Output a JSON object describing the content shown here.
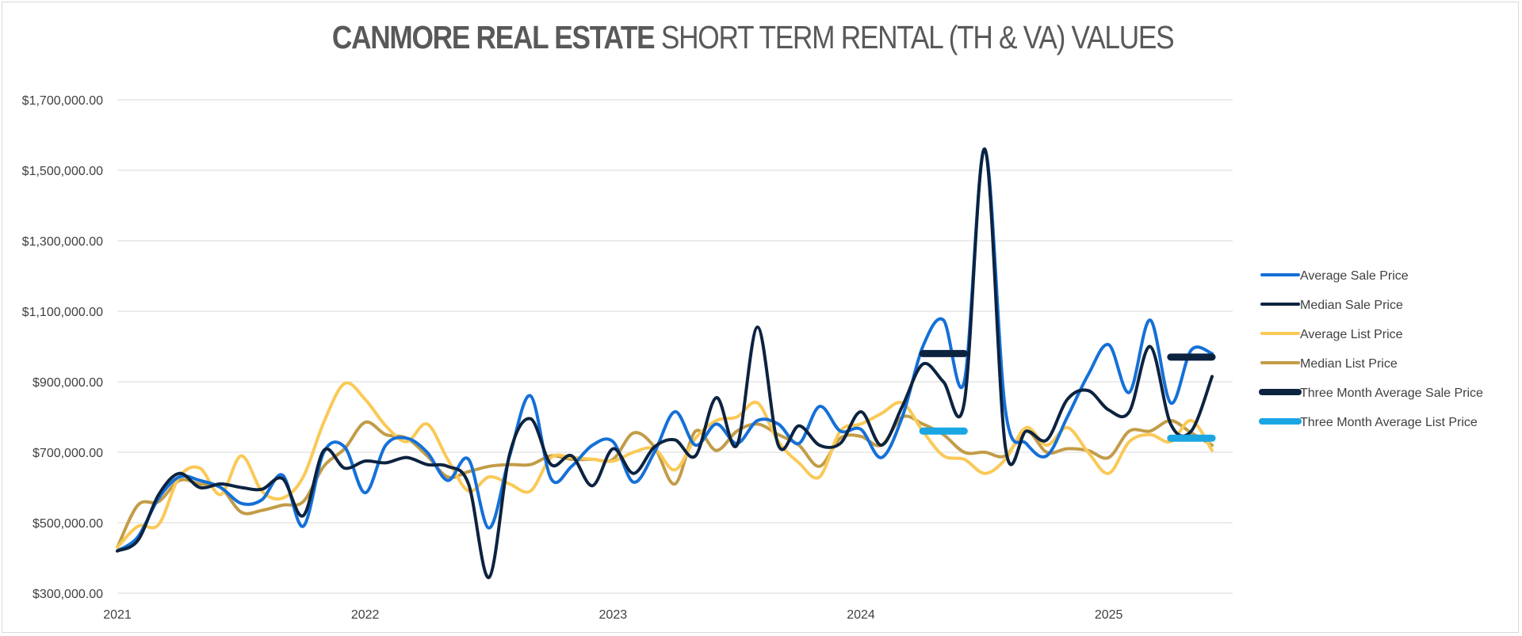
{
  "chart_data": {
    "type": "line",
    "title_bold": "CANMORE REAL ESTATE",
    "title_rest": "SHORT TERM RENTAL (TH & VA) VALUES",
    "xlabel": "",
    "ylabel": "",
    "ylim": [
      300000,
      1700000
    ],
    "yticks": [
      300000,
      500000,
      700000,
      900000,
      1100000,
      1300000,
      1500000,
      1700000
    ],
    "ytick_labels": [
      "$300,000.00",
      "$500,000.00",
      "$700,000.00",
      "$900,000.00",
      "$1,100,000.00",
      "$1,300,000.00",
      "$1,500,000.00",
      "$1,700,000.00"
    ],
    "xlim": [
      2021.0,
      2025.5
    ],
    "xticks": [
      2021,
      2022,
      2023,
      2024,
      2025
    ],
    "xtick_labels": [
      "2021",
      "2022",
      "2023",
      "2024",
      "2025"
    ],
    "grid": "horizontal",
    "legend_position": "right",
    "series": [
      {
        "name": "Average Sale Price",
        "color": "#1570d8",
        "x": [
          2021.0,
          2021.083,
          2021.167,
          2021.25,
          2021.333,
          2021.417,
          2021.5,
          2021.583,
          2021.667,
          2021.75,
          2021.833,
          2021.917,
          2022.0,
          2022.083,
          2022.167,
          2022.25,
          2022.333,
          2022.417,
          2022.5,
          2022.583,
          2022.667,
          2022.75,
          2022.833,
          2022.917,
          2023.0,
          2023.083,
          2023.167,
          2023.25,
          2023.333,
          2023.417,
          2023.5,
          2023.583,
          2023.667,
          2023.75,
          2023.833,
          2023.917,
          2024.0,
          2024.083,
          2024.167,
          2024.25,
          2024.333,
          2024.417,
          2024.5,
          2024.583,
          2024.667,
          2024.75,
          2024.833,
          2024.917,
          2025.0,
          2025.083,
          2025.167,
          2025.25,
          2025.333,
          2025.417
        ],
        "values": [
          420000,
          460000,
          570000,
          630000,
          620000,
          600000,
          555000,
          565000,
          635000,
          490000,
          700000,
          715000,
          585000,
          720000,
          740000,
          700000,
          620000,
          680000,
          485000,
          690000,
          860000,
          625000,
          660000,
          720000,
          730000,
          615000,
          700000,
          815000,
          720000,
          780000,
          725000,
          790000,
          780000,
          725000,
          830000,
          760000,
          765000,
          685000,
          800000,
          1000000,
          1075000,
          900000,
          1560000,
          820000,
          725000,
          690000,
          800000,
          920000,
          1005000,
          870000,
          1075000,
          840000,
          990000,
          980000
        ]
      },
      {
        "name": "Median Sale Price",
        "color": "#0c2340",
        "x": [
          2021.0,
          2021.083,
          2021.167,
          2021.25,
          2021.333,
          2021.417,
          2021.5,
          2021.583,
          2021.667,
          2021.75,
          2021.833,
          2021.917,
          2022.0,
          2022.083,
          2022.167,
          2022.25,
          2022.333,
          2022.417,
          2022.5,
          2022.583,
          2022.667,
          2022.75,
          2022.833,
          2022.917,
          2023.0,
          2023.083,
          2023.167,
          2023.25,
          2023.333,
          2023.417,
          2023.5,
          2023.583,
          2023.667,
          2023.75,
          2023.833,
          2023.917,
          2024.0,
          2024.083,
          2024.167,
          2024.25,
          2024.333,
          2024.417,
          2024.5,
          2024.583,
          2024.667,
          2024.75,
          2024.833,
          2024.917,
          2025.0,
          2025.083,
          2025.167,
          2025.25,
          2025.333,
          2025.417
        ],
        "values": [
          420000,
          450000,
          580000,
          640000,
          600000,
          610000,
          600000,
          595000,
          625000,
          520000,
          705000,
          655000,
          675000,
          670000,
          685000,
          665000,
          660000,
          610000,
          345000,
          695000,
          795000,
          665000,
          690000,
          605000,
          710000,
          640000,
          715000,
          735000,
          690000,
          855000,
          720000,
          1055000,
          720000,
          775000,
          720000,
          725000,
          815000,
          720000,
          830000,
          950000,
          900000,
          840000,
          1560000,
          715000,
          760000,
          735000,
          850000,
          875000,
          820000,
          815000,
          1000000,
          780000,
          760000,
          915000
        ]
      },
      {
        "name": "Average List Price",
        "color": "#fac957",
        "x": [
          2021.0,
          2021.083,
          2021.167,
          2021.25,
          2021.333,
          2021.417,
          2021.5,
          2021.583,
          2021.667,
          2021.75,
          2021.833,
          2021.917,
          2022.0,
          2022.083,
          2022.167,
          2022.25,
          2022.333,
          2022.417,
          2022.5,
          2022.583,
          2022.667,
          2022.75,
          2022.833,
          2022.917,
          2023.0,
          2023.083,
          2023.167,
          2023.25,
          2023.333,
          2023.417,
          2023.5,
          2023.583,
          2023.667,
          2023.75,
          2023.833,
          2023.917,
          2024.0,
          2024.083,
          2024.167,
          2024.25,
          2024.333,
          2024.417,
          2024.5,
          2024.583,
          2024.667,
          2024.75,
          2024.833,
          2024.917,
          2025.0,
          2025.083,
          2025.167,
          2025.25,
          2025.333,
          2025.417
        ],
        "values": [
          430000,
          490000,
          495000,
          630000,
          655000,
          580000,
          690000,
          590000,
          570000,
          630000,
          785000,
          895000,
          850000,
          775000,
          730000,
          780000,
          680000,
          590000,
          630000,
          610000,
          590000,
          685000,
          685000,
          680000,
          675000,
          700000,
          710000,
          650000,
          740000,
          790000,
          800000,
          840000,
          730000,
          670000,
          630000,
          760000,
          780000,
          810000,
          840000,
          760000,
          690000,
          680000,
          640000,
          680000,
          770000,
          720000,
          770000,
          700000,
          640000,
          730000,
          750000,
          730000,
          790000,
          705000
        ]
      },
      {
        "name": "Median List Price",
        "color": "#c29c47",
        "x": [
          2021.0,
          2021.083,
          2021.167,
          2021.25,
          2021.333,
          2021.417,
          2021.5,
          2021.583,
          2021.667,
          2021.75,
          2021.833,
          2021.917,
          2022.0,
          2022.083,
          2022.167,
          2022.25,
          2022.333,
          2022.417,
          2022.5,
          2022.583,
          2022.667,
          2022.75,
          2022.833,
          2022.917,
          2023.0,
          2023.083,
          2023.167,
          2023.25,
          2023.333,
          2023.417,
          2023.5,
          2023.583,
          2023.667,
          2023.75,
          2023.833,
          2023.917,
          2024.0,
          2024.083,
          2024.167,
          2024.25,
          2024.333,
          2024.417,
          2024.5,
          2024.583,
          2024.667,
          2024.75,
          2024.833,
          2024.917,
          2025.0,
          2025.083,
          2025.167,
          2025.25,
          2025.333,
          2025.417
        ],
        "values": [
          430000,
          550000,
          560000,
          620000,
          610000,
          600000,
          530000,
          535000,
          550000,
          560000,
          660000,
          710000,
          785000,
          750000,
          740000,
          690000,
          630000,
          645000,
          660000,
          665000,
          665000,
          690000,
          680000,
          680000,
          680000,
          755000,
          715000,
          610000,
          760000,
          705000,
          760000,
          780000,
          750000,
          720000,
          660000,
          740000,
          745000,
          720000,
          800000,
          780000,
          750000,
          700000,
          700000,
          690000,
          760000,
          700000,
          710000,
          705000,
          685000,
          760000,
          760000,
          790000,
          755000,
          720000
        ]
      },
      {
        "name": "Three Month Average Sale Price",
        "color": "#0c2340",
        "segment": true,
        "x": [
          [
            2024.25,
            2024.417
          ],
          [
            2025.25,
            2025.417
          ]
        ],
        "values": [
          980000,
          970000
        ]
      },
      {
        "name": "Three Month Average List Price",
        "color": "#1aa6e3",
        "segment": true,
        "x": [
          [
            2024.25,
            2024.417
          ],
          [
            2025.25,
            2025.417
          ]
        ],
        "values": [
          760000,
          740000
        ]
      }
    ]
  }
}
